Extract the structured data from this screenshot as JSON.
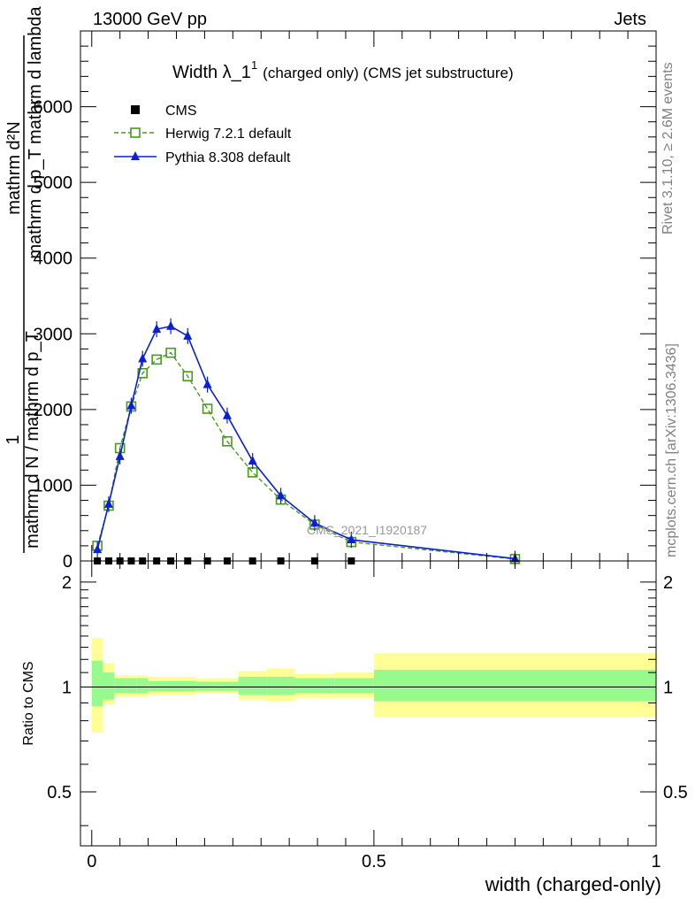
{
  "header": {
    "left": "13000 GeV pp",
    "right": "Jets"
  },
  "side_labels": {
    "rivet": "Rivet 3.1.10, ≥ 2.6M events",
    "mcplots": "mcplots.cern.ch [arXiv:1306.3436]"
  },
  "chart_data": [
    {
      "type": "line",
      "title": "Width λ_1",
      "title_superscript": "1",
      "title_suffix": "(charged only) (CMS jet substructure)",
      "watermark": "CMS_2021_I1920187",
      "ylabel": {
        "prefix": "1",
        "prefix_denominator": "mathrm d N / mathrm d p_T",
        "numerator": "mathrm d²N",
        "denominator": "mathrm d p_T mathrm d lambda"
      },
      "xlim": [
        -0.02,
        1.0
      ],
      "ylim": [
        0,
        7000
      ],
      "yticks": [
        0,
        1000,
        2000,
        3000,
        4000,
        5000,
        6000
      ],
      "ytick_labels": [
        "0",
        "1000",
        "2000",
        "3000",
        "4000",
        "5000",
        "6000"
      ],
      "grid": false,
      "legend": "top-left",
      "series": [
        {
          "name": "CMS",
          "marker": "square-filled",
          "color": "#000000",
          "x": [
            0.01,
            0.03,
            0.05,
            0.07,
            0.09,
            0.115,
            0.14,
            0.17,
            0.205,
            0.24,
            0.285,
            0.335,
            0.395,
            0.46
          ],
          "values": [
            0,
            0,
            0,
            0,
            0,
            0,
            0,
            0,
            0,
            0,
            0,
            0,
            0,
            0
          ]
        },
        {
          "name": "Herwig 7.2.1 default",
          "marker": "square-open",
          "line": "dashed",
          "color": "#4a9a1a",
          "x": [
            0.01,
            0.03,
            0.05,
            0.07,
            0.09,
            0.115,
            0.14,
            0.17,
            0.205,
            0.24,
            0.285,
            0.335,
            0.395,
            0.46,
            0.75
          ],
          "values": [
            200,
            730,
            1490,
            2040,
            2480,
            2660,
            2750,
            2440,
            2010,
            1580,
            1170,
            810,
            480,
            250,
            25
          ]
        },
        {
          "name": "Pythia 8.308 default",
          "marker": "triangle-filled",
          "line": "solid",
          "color": "#0a1fd6",
          "x": [
            0.01,
            0.03,
            0.05,
            0.07,
            0.09,
            0.115,
            0.14,
            0.17,
            0.205,
            0.24,
            0.285,
            0.335,
            0.395,
            0.46,
            0.75
          ],
          "values": [
            150,
            750,
            1380,
            2050,
            2670,
            3060,
            3100,
            2970,
            2330,
            1920,
            1320,
            860,
            500,
            280,
            30
          ]
        }
      ]
    },
    {
      "type": "area",
      "ylabel": "Ratio to CMS",
      "xlabel": "width (charged-only)",
      "xlim": [
        -0.02,
        1.0
      ],
      "ylim": [
        0.35,
        2.3
      ],
      "log_y": true,
      "xticks": [
        0,
        0.5,
        1
      ],
      "xtick_labels": [
        "0",
        "0.5",
        "1"
      ],
      "yticks": [
        0.5,
        1,
        2
      ],
      "ytick_labels": [
        "0.5",
        "1",
        "2"
      ],
      "reference_line": 1,
      "bands": [
        {
          "x0": 0.0,
          "x1": 0.02,
          "stat_lo": 0.88,
          "stat_hi": 1.19,
          "tot_lo": 0.74,
          "tot_hi": 1.38
        },
        {
          "x0": 0.02,
          "x1": 0.04,
          "stat_lo": 0.92,
          "stat_hi": 1.1,
          "tot_lo": 0.89,
          "tot_hi": 1.17
        },
        {
          "x0": 0.04,
          "x1": 0.06,
          "stat_lo": 0.96,
          "stat_hi": 1.06,
          "tot_lo": 0.94,
          "tot_hi": 1.08
        },
        {
          "x0": 0.06,
          "x1": 0.08,
          "stat_lo": 0.96,
          "stat_hi": 1.06,
          "tot_lo": 0.94,
          "tot_hi": 1.08
        },
        {
          "x0": 0.08,
          "x1": 0.1,
          "stat_lo": 0.96,
          "stat_hi": 1.06,
          "tot_lo": 0.94,
          "tot_hi": 1.08
        },
        {
          "x0": 0.1,
          "x1": 0.125,
          "stat_lo": 0.97,
          "stat_hi": 1.04,
          "tot_lo": 0.95,
          "tot_hi": 1.07
        },
        {
          "x0": 0.125,
          "x1": 0.15,
          "stat_lo": 0.97,
          "stat_hi": 1.04,
          "tot_lo": 0.95,
          "tot_hi": 1.07
        },
        {
          "x0": 0.15,
          "x1": 0.185,
          "stat_lo": 0.97,
          "stat_hi": 1.04,
          "tot_lo": 0.95,
          "tot_hi": 1.07
        },
        {
          "x0": 0.185,
          "x1": 0.22,
          "stat_lo": 0.975,
          "stat_hi": 1.035,
          "tot_lo": 0.96,
          "tot_hi": 1.06
        },
        {
          "x0": 0.22,
          "x1": 0.26,
          "stat_lo": 0.975,
          "stat_hi": 1.035,
          "tot_lo": 0.96,
          "tot_hi": 1.06
        },
        {
          "x0": 0.26,
          "x1": 0.31,
          "stat_lo": 0.95,
          "stat_hi": 1.07,
          "tot_lo": 0.92,
          "tot_hi": 1.11
        },
        {
          "x0": 0.31,
          "x1": 0.36,
          "stat_lo": 0.95,
          "stat_hi": 1.07,
          "tot_lo": 0.91,
          "tot_hi": 1.13
        },
        {
          "x0": 0.36,
          "x1": 0.43,
          "stat_lo": 0.96,
          "stat_hi": 1.06,
          "tot_lo": 0.93,
          "tot_hi": 1.09
        },
        {
          "x0": 0.43,
          "x1": 0.5,
          "stat_lo": 0.96,
          "stat_hi": 1.06,
          "tot_lo": 0.93,
          "tot_hi": 1.1
        },
        {
          "x0": 0.5,
          "x1": 1.0,
          "stat_lo": 0.91,
          "stat_hi": 1.12,
          "tot_lo": 0.82,
          "tot_hi": 1.25
        }
      ],
      "band_colors": {
        "stat": "#96fa8c",
        "total": "#ffff96"
      }
    }
  ]
}
